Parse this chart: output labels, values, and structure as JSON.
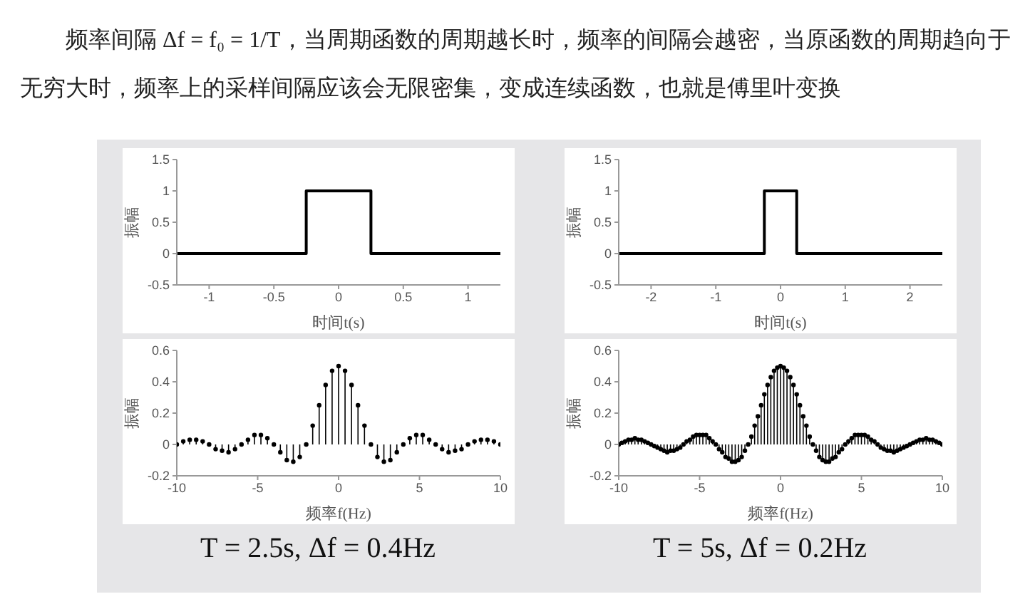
{
  "chart_data": [
    {
      "type": "line",
      "annotations": [
        "频率间隔 Δf = f₀ = 1/T，当周期函数的周期越长时，频率的间隔会越密，当原函数的周期趋向于无穷大时，频率上的采样间隔应该会无限密集，变成连续函数，也就是傅里叶变换"
      ],
      "xlabel": "时间t(s)",
      "ylabel": "振幅",
      "x": [
        -1.25,
        -0.25,
        -0.25,
        0.25,
        0.25,
        1.25
      ],
      "series": [
        {
          "color": "#000000",
          "values": [
            0,
            0,
            1,
            1,
            0,
            0
          ]
        }
      ],
      "xlim": [
        -1.25,
        1.25
      ],
      "xticks": [
        -1,
        -0.5,
        0,
        0.5,
        1
      ],
      "ylim": [
        -0.5,
        1.5
      ],
      "yticks": [
        -0.5,
        0,
        0.5,
        1,
        1.5
      ],
      "grid": false,
      "legend": false,
      "marker": "none",
      "line_style": "solid"
    },
    {
      "type": "line",
      "xlabel": "时间t(s)",
      "ylabel": "振幅",
      "x": [
        -2.5,
        -0.25,
        -0.25,
        0.25,
        0.25,
        2.5
      ],
      "series": [
        {
          "color": "#000000",
          "values": [
            0,
            0,
            1,
            1,
            0,
            0
          ]
        }
      ],
      "xlim": [
        -2.5,
        2.5
      ],
      "xticks": [
        -2,
        -1,
        0,
        1,
        2
      ],
      "ylim": [
        -0.5,
        1.5
      ],
      "yticks": [
        -0.5,
        0,
        0.5,
        1,
        1.5
      ],
      "grid": false,
      "legend": false,
      "marker": "none",
      "line_style": "solid"
    },
    {
      "type": "lollipop",
      "annotations": [
        "T = 2.5s, Δf = 0.4Hz"
      ],
      "xlabel": "频率f(Hz)",
      "ylabel": "振幅",
      "x": [
        -10,
        -9.6,
        -9.2,
        -8.8,
        -8.4,
        -8,
        -7.6,
        -7.2,
        -6.8,
        -6.4,
        -6,
        -5.6,
        -5.2,
        -4.8,
        -4.4,
        -4,
        -3.6,
        -3.2,
        -2.8,
        -2.4,
        -2,
        -1.6,
        -1.2,
        -0.8,
        -0.4,
        0,
        0.4,
        0.8,
        1.2,
        1.6,
        2,
        2.4,
        2.8,
        3.2,
        3.6,
        4,
        4.4,
        4.8,
        5.2,
        5.6,
        6,
        6.4,
        6.8,
        7.2,
        7.6,
        8,
        8.4,
        8.8,
        9.2,
        9.6,
        10
      ],
      "series": [
        {
          "color": "#000000",
          "values": [
            0,
            0.02,
            0.03,
            0.03,
            0.02,
            0,
            -0.03,
            -0.04,
            -0.05,
            -0.03,
            0,
            0.03,
            0.06,
            0.06,
            0.04,
            0,
            -0.05,
            -0.1,
            -0.11,
            -0.08,
            0,
            0.12,
            0.25,
            0.38,
            0.47,
            0.5,
            0.47,
            0.38,
            0.25,
            0.12,
            0,
            -0.08,
            -0.11,
            -0.1,
            -0.05,
            0,
            0.04,
            0.06,
            0.06,
            0.03,
            0,
            -0.03,
            -0.05,
            -0.04,
            -0.03,
            0,
            0.02,
            0.03,
            0.03,
            0.02,
            0
          ]
        }
      ],
      "xlim": [
        -10,
        10
      ],
      "xticks": [
        -10,
        -5,
        0,
        5,
        10
      ],
      "ylim": [
        -0.2,
        0.6
      ],
      "yticks": [
        -0.2,
        0,
        0.2,
        0.4,
        0.6
      ],
      "grid": false,
      "legend": false,
      "marker": "circle"
    },
    {
      "type": "lollipop",
      "annotations": [
        "T = 5s, Δf = 0.2Hz"
      ],
      "xlabel": "频率f(Hz)",
      "ylabel": "振幅",
      "x": [
        -10,
        -9.8,
        -9.6,
        -9.4,
        -9.2,
        -9,
        -8.8,
        -8.6,
        -8.4,
        -8.2,
        -8,
        -7.8,
        -7.6,
        -7.4,
        -7.2,
        -7,
        -6.8,
        -6.6,
        -6.4,
        -6.2,
        -6,
        -5.8,
        -5.6,
        -5.4,
        -5.2,
        -5,
        -4.8,
        -4.6,
        -4.4,
        -4.2,
        -4,
        -3.8,
        -3.6,
        -3.4,
        -3.2,
        -3,
        -2.8,
        -2.6,
        -2.4,
        -2.2,
        -2,
        -1.8,
        -1.6,
        -1.4,
        -1.2,
        -1,
        -0.8,
        -0.6,
        -0.4,
        -0.2,
        0,
        0.2,
        0.4,
        0.6,
        0.8,
        1,
        1.2,
        1.4,
        1.6,
        1.8,
        2,
        2.2,
        2.4,
        2.6,
        2.8,
        3,
        3.2,
        3.4,
        3.6,
        3.8,
        4,
        4.2,
        4.4,
        4.6,
        4.8,
        5,
        5.2,
        5.4,
        5.6,
        5.8,
        6,
        6.2,
        6.4,
        6.6,
        6.8,
        7,
        7.2,
        7.4,
        7.6,
        7.8,
        8,
        8.2,
        8.4,
        8.6,
        8.8,
        9,
        9.2,
        9.4,
        9.6,
        9.8,
        10
      ],
      "series": [
        {
          "color": "#000000",
          "values": [
            0,
            0.01,
            0.02,
            0.03,
            0.03,
            0.04,
            0.03,
            0.03,
            0.02,
            0.01,
            0,
            -0.01,
            -0.02,
            -0.03,
            -0.04,
            -0.05,
            -0.04,
            -0.04,
            -0.03,
            -0.02,
            0,
            0.02,
            0.03,
            0.05,
            0.06,
            0.06,
            0.06,
            0.06,
            0.04,
            0.02,
            0,
            -0.03,
            -0.05,
            -0.08,
            -0.09,
            -0.11,
            -0.11,
            -0.1,
            -0.08,
            -0.04,
            0,
            0.05,
            0.12,
            0.18,
            0.25,
            0.32,
            0.38,
            0.43,
            0.47,
            0.49,
            0.5,
            0.49,
            0.47,
            0.43,
            0.38,
            0.32,
            0.25,
            0.18,
            0.12,
            0.05,
            0,
            -0.04,
            -0.08,
            -0.1,
            -0.11,
            -0.11,
            -0.09,
            -0.08,
            -0.05,
            -0.03,
            0,
            0.02,
            0.04,
            0.06,
            0.06,
            0.06,
            0.06,
            0.05,
            0.03,
            0.02,
            0,
            -0.02,
            -0.03,
            -0.04,
            -0.04,
            -0.05,
            -0.04,
            -0.03,
            -0.02,
            -0.01,
            0,
            0.01,
            0.02,
            0.03,
            0.03,
            0.04,
            0.03,
            0.03,
            0.02,
            0.01,
            0
          ]
        }
      ],
      "xlim": [
        -10,
        10
      ],
      "xticks": [
        -10,
        -5,
        0,
        5,
        10
      ],
      "ylim": [
        -0.2,
        0.6
      ],
      "yticks": [
        -0.2,
        0,
        0.2,
        0.4,
        0.6
      ],
      "grid": false,
      "legend": false,
      "marker": "circle"
    }
  ]
}
